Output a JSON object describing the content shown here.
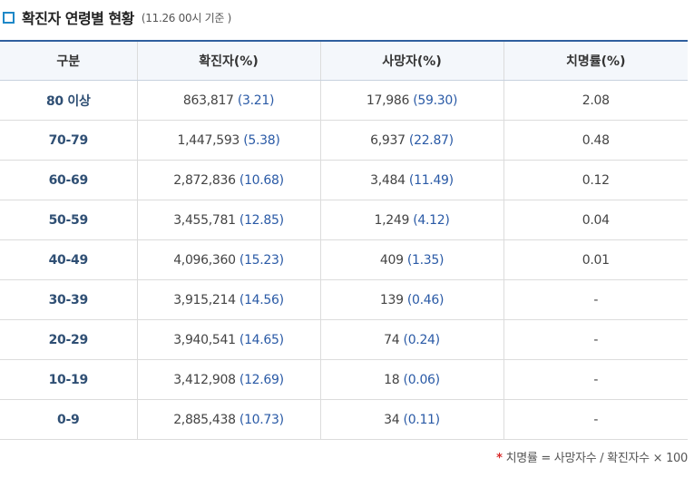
{
  "header": {
    "title": "확진자 연령별 현황",
    "subtitle": "(11.26 00시 기준 )"
  },
  "table": {
    "columns": [
      "구분",
      "확진자(%)",
      "사망자(%)",
      "치명률(%)"
    ],
    "rows": [
      {
        "age": "80 이상",
        "cases": "863,817",
        "cases_pct": "(3.21)",
        "deaths": "17,986",
        "deaths_pct": "(59.30)",
        "fatality": "2.08"
      },
      {
        "age": "70-79",
        "cases": "1,447,593",
        "cases_pct": "(5.38)",
        "deaths": "6,937",
        "deaths_pct": "(22.87)",
        "fatality": "0.48"
      },
      {
        "age": "60-69",
        "cases": "2,872,836",
        "cases_pct": "(10.68)",
        "deaths": "3,484",
        "deaths_pct": "(11.49)",
        "fatality": "0.12"
      },
      {
        "age": "50-59",
        "cases": "3,455,781",
        "cases_pct": "(12.85)",
        "deaths": "1,249",
        "deaths_pct": "(4.12)",
        "fatality": "0.04"
      },
      {
        "age": "40-49",
        "cases": "4,096,360",
        "cases_pct": "(15.23)",
        "deaths": "409",
        "deaths_pct": "(1.35)",
        "fatality": "0.01"
      },
      {
        "age": "30-39",
        "cases": "3,915,214",
        "cases_pct": "(14.56)",
        "deaths": "139",
        "deaths_pct": "(0.46)",
        "fatality": "-"
      },
      {
        "age": "20-29",
        "cases": "3,940,541",
        "cases_pct": "(14.65)",
        "deaths": "74",
        "deaths_pct": "(0.24)",
        "fatality": "-"
      },
      {
        "age": "10-19",
        "cases": "3,412,908",
        "cases_pct": "(12.69)",
        "deaths": "18",
        "deaths_pct": "(0.06)",
        "fatality": "-"
      },
      {
        "age": "0-9",
        "cases": "2,885,438",
        "cases_pct": "(10.73)",
        "deaths": "34",
        "deaths_pct": "(0.11)",
        "fatality": "-"
      }
    ]
  },
  "footnote": {
    "star": "*",
    "text": "치명률 = 사망자수 / 확진자수 × 100"
  },
  "colors": {
    "accent": "#1e88c8",
    "header_border": "#2f5f9e",
    "value_blue": "#2a5aa6",
    "star_red": "#d82b2b"
  }
}
